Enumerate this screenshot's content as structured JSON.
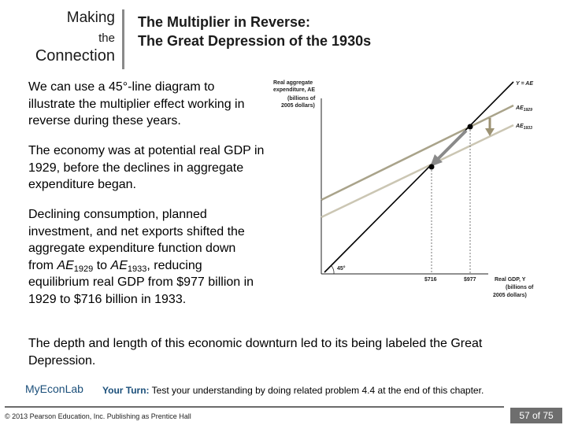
{
  "brand": {
    "making": "Making",
    "the": "the",
    "connection": "Connection"
  },
  "title": {
    "line1": "The Multiplier in Reverse:",
    "line2": "The Great Depression of the 1930s"
  },
  "paragraphs": {
    "p1": "We can use a 45°-line diagram to illustrate the multiplier effect working in reverse during these years.",
    "p2": "The economy was at potential real GDP in 1929, before the declines in aggregate expenditure began.",
    "p3_a": "Declining consumption, planned investment, and net exports shifted the aggregate expenditure function down from ",
    "p3_ae1": "AE",
    "p3_sub1": "1929",
    "p3_to": " to ",
    "p3_ae2": "AE",
    "p3_sub2": "1933",
    "p3_b": ", reducing equilibrium real GDP from $977 billion in 1929 to $716 billion in 1933.",
    "p4": "The depth and length of this economic downturn led to its being labeled the Great Depression."
  },
  "chart": {
    "y_axis_label": [
      "Real aggregate",
      "expenditure, AE",
      "(billions of",
      "2005 dollars)"
    ],
    "x_axis_label": [
      "Real GDP, Y",
      "(billions of",
      "2005 dollars)"
    ],
    "line_45_label": "Y = AE",
    "ae1929_label": "AE",
    "ae1929_sub": "1929",
    "ae1933_label": "AE",
    "ae1933_sub": "1933",
    "angle_label": "45°",
    "ticks": [
      "$716",
      "$977"
    ],
    "colors": {
      "ae1929": "#a9a38a",
      "ae1933": "#cbc6b3",
      "line45": "#000000",
      "arrow": "#9c9273",
      "shift": "#8a8a8a"
    }
  },
  "myeconlab": {
    "label": "MyEconLab"
  },
  "your_turn": {
    "label": "Your Turn:",
    "text": "Test your understanding by doing related problem 4.4 at the end of this chapter."
  },
  "footer": {
    "copyright": "© 2013 Pearson Education, Inc. Publishing as Prentice Hall",
    "page": "57 of 75"
  }
}
